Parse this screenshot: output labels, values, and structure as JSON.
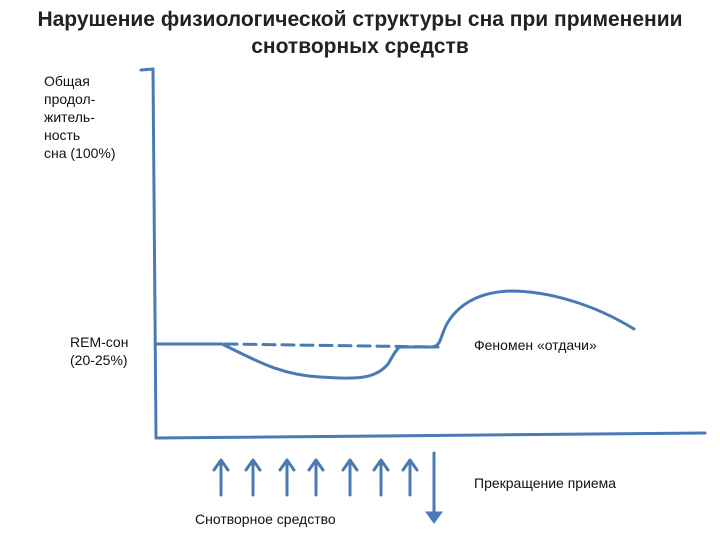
{
  "title": {
    "line1": "Нарушение физиологической структуры сна при  применении",
    "line2": "снотворных средств"
  },
  "y_axis_label": {
    "line1": "Общая",
    "line2": "продол-",
    "line3": "житель-",
    "line4": "ность",
    "line5": "сна (100%)"
  },
  "rem_label": {
    "line1": "REM-сон",
    "line2": "(20-25%)"
  },
  "annotations": {
    "rebound": "Феномен «отдачи»",
    "stop_intake": "Прекращение приема",
    "hypnotic": "Снотворное средство"
  },
  "colors": {
    "line": "#4a7ab5"
  },
  "markers": {
    "drug_dose_arrows": 7,
    "stop_arrows": 1
  }
}
